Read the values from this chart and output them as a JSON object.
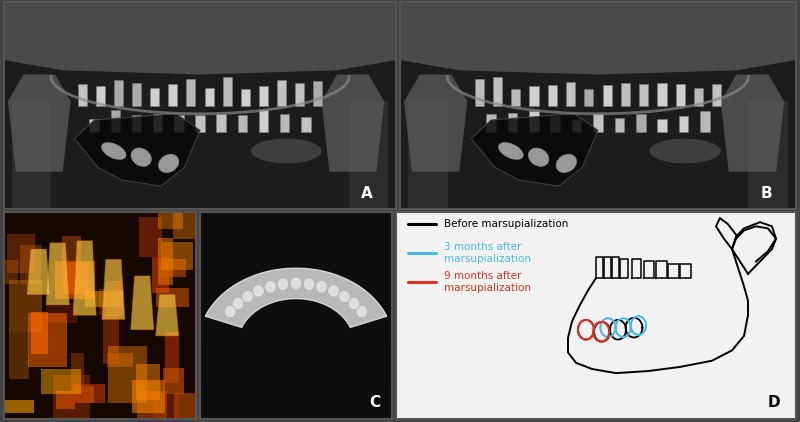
{
  "fig_width": 8.0,
  "fig_height": 4.22,
  "dpi": 100,
  "border_color": "#555555",
  "border_lw": 1.5,
  "panel_labels": [
    "A",
    "B",
    "C",
    "D"
  ],
  "panel_label_fontsize": 11,
  "panel_label_color": "#ffffff",
  "panel_label_color_D": "#000000",
  "legend_items": [
    {
      "label": "Before marsupialization",
      "color": "#000000"
    },
    {
      "label": "3 months after\nmarsupialization",
      "color": "#4db8e8"
    },
    {
      "label": "9 months after\nmarsupialization",
      "color": "#e03020"
    }
  ],
  "legend_fontsize": 7.5,
  "bg_top": "#1a1a1a",
  "bg_3d": "#8B4500",
  "bg_ct": "#888888",
  "bg_D": "#f0f0f0"
}
